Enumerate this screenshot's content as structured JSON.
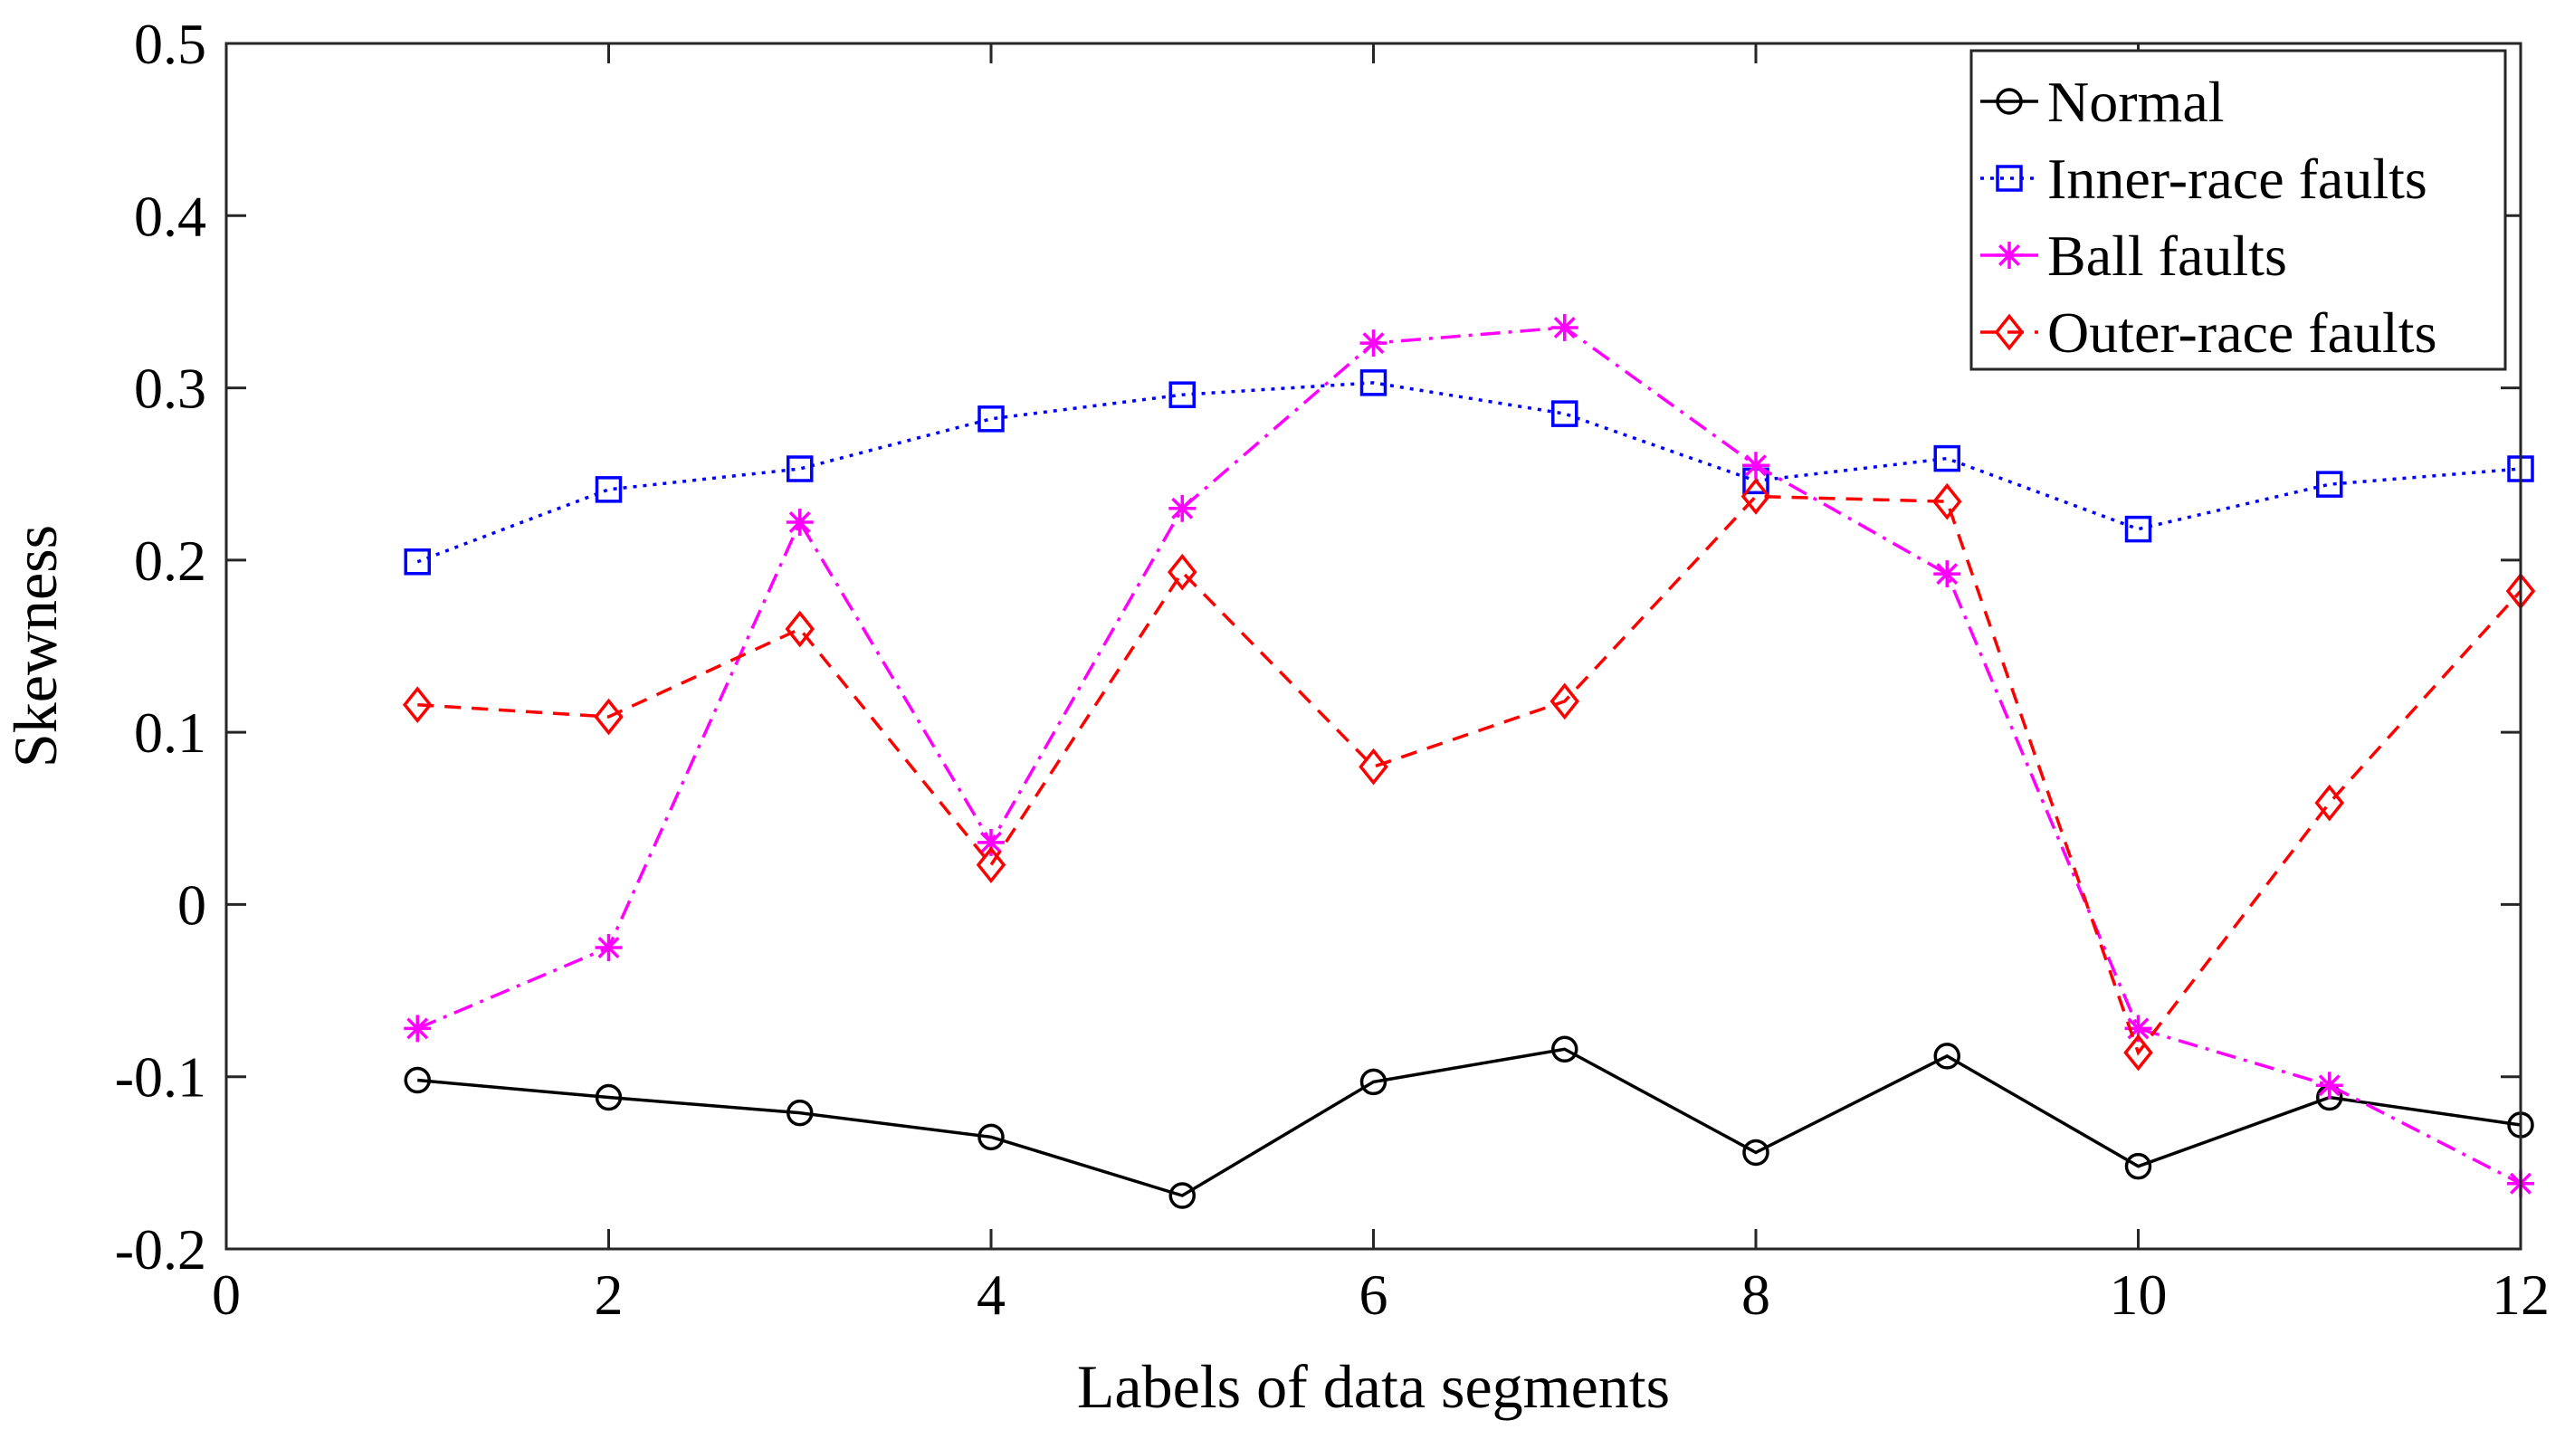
{
  "chart_data": {
    "type": "line",
    "title": "",
    "xlabel": "Labels of data segments",
    "ylabel": "Skewness",
    "xlim": [
      0,
      12
    ],
    "ylim": [
      -0.2,
      0.5
    ],
    "xticks": [
      0,
      2,
      4,
      6,
      8,
      10,
      12
    ],
    "yticks": [
      -0.2,
      -0.1,
      0,
      0.1,
      0.2,
      0.3,
      0.4,
      0.5
    ],
    "xtick_labels": [
      "0",
      "2",
      "4",
      "6",
      "8",
      "10",
      "12"
    ],
    "ytick_labels": [
      "-0.2",
      "-0.1",
      "0",
      "0.1",
      "0.2",
      "0.3",
      "0.4",
      "0.5"
    ],
    "legend_position": "top-right",
    "grid": false,
    "x": [
      1,
      2,
      3,
      4,
      5,
      6,
      7,
      8,
      9,
      10,
      11,
      12
    ],
    "series": [
      {
        "name": "Normal",
        "color": "#000000",
        "marker": "circle",
        "dash": "solid",
        "values": [
          -0.102,
          -0.112,
          -0.121,
          -0.135,
          -0.169,
          -0.103,
          -0.084,
          -0.144,
          -0.088,
          -0.152,
          -0.112,
          -0.128
        ]
      },
      {
        "name": "Inner-race faults",
        "color": "#0000ff",
        "marker": "square",
        "dash": "dotted",
        "values": [
          0.199,
          0.241,
          0.253,
          0.282,
          0.296,
          0.303,
          0.285,
          0.246,
          0.259,
          0.218,
          0.244,
          0.253
        ]
      },
      {
        "name": "Ball faults",
        "color": "#ff00ff",
        "marker": "asterisk",
        "dash": "dashdot",
        "values": [
          -0.072,
          -0.025,
          0.222,
          0.036,
          0.23,
          0.326,
          0.335,
          0.255,
          0.192,
          -0.072,
          -0.105,
          -0.162
        ]
      },
      {
        "name": "Outer-race faults",
        "color": "#ff0000",
        "marker": "diamond",
        "dash": "dashed",
        "values": [
          0.116,
          0.109,
          0.16,
          0.023,
          0.193,
          0.08,
          0.118,
          0.237,
          0.234,
          -0.086,
          0.059,
          0.182
        ]
      }
    ]
  }
}
